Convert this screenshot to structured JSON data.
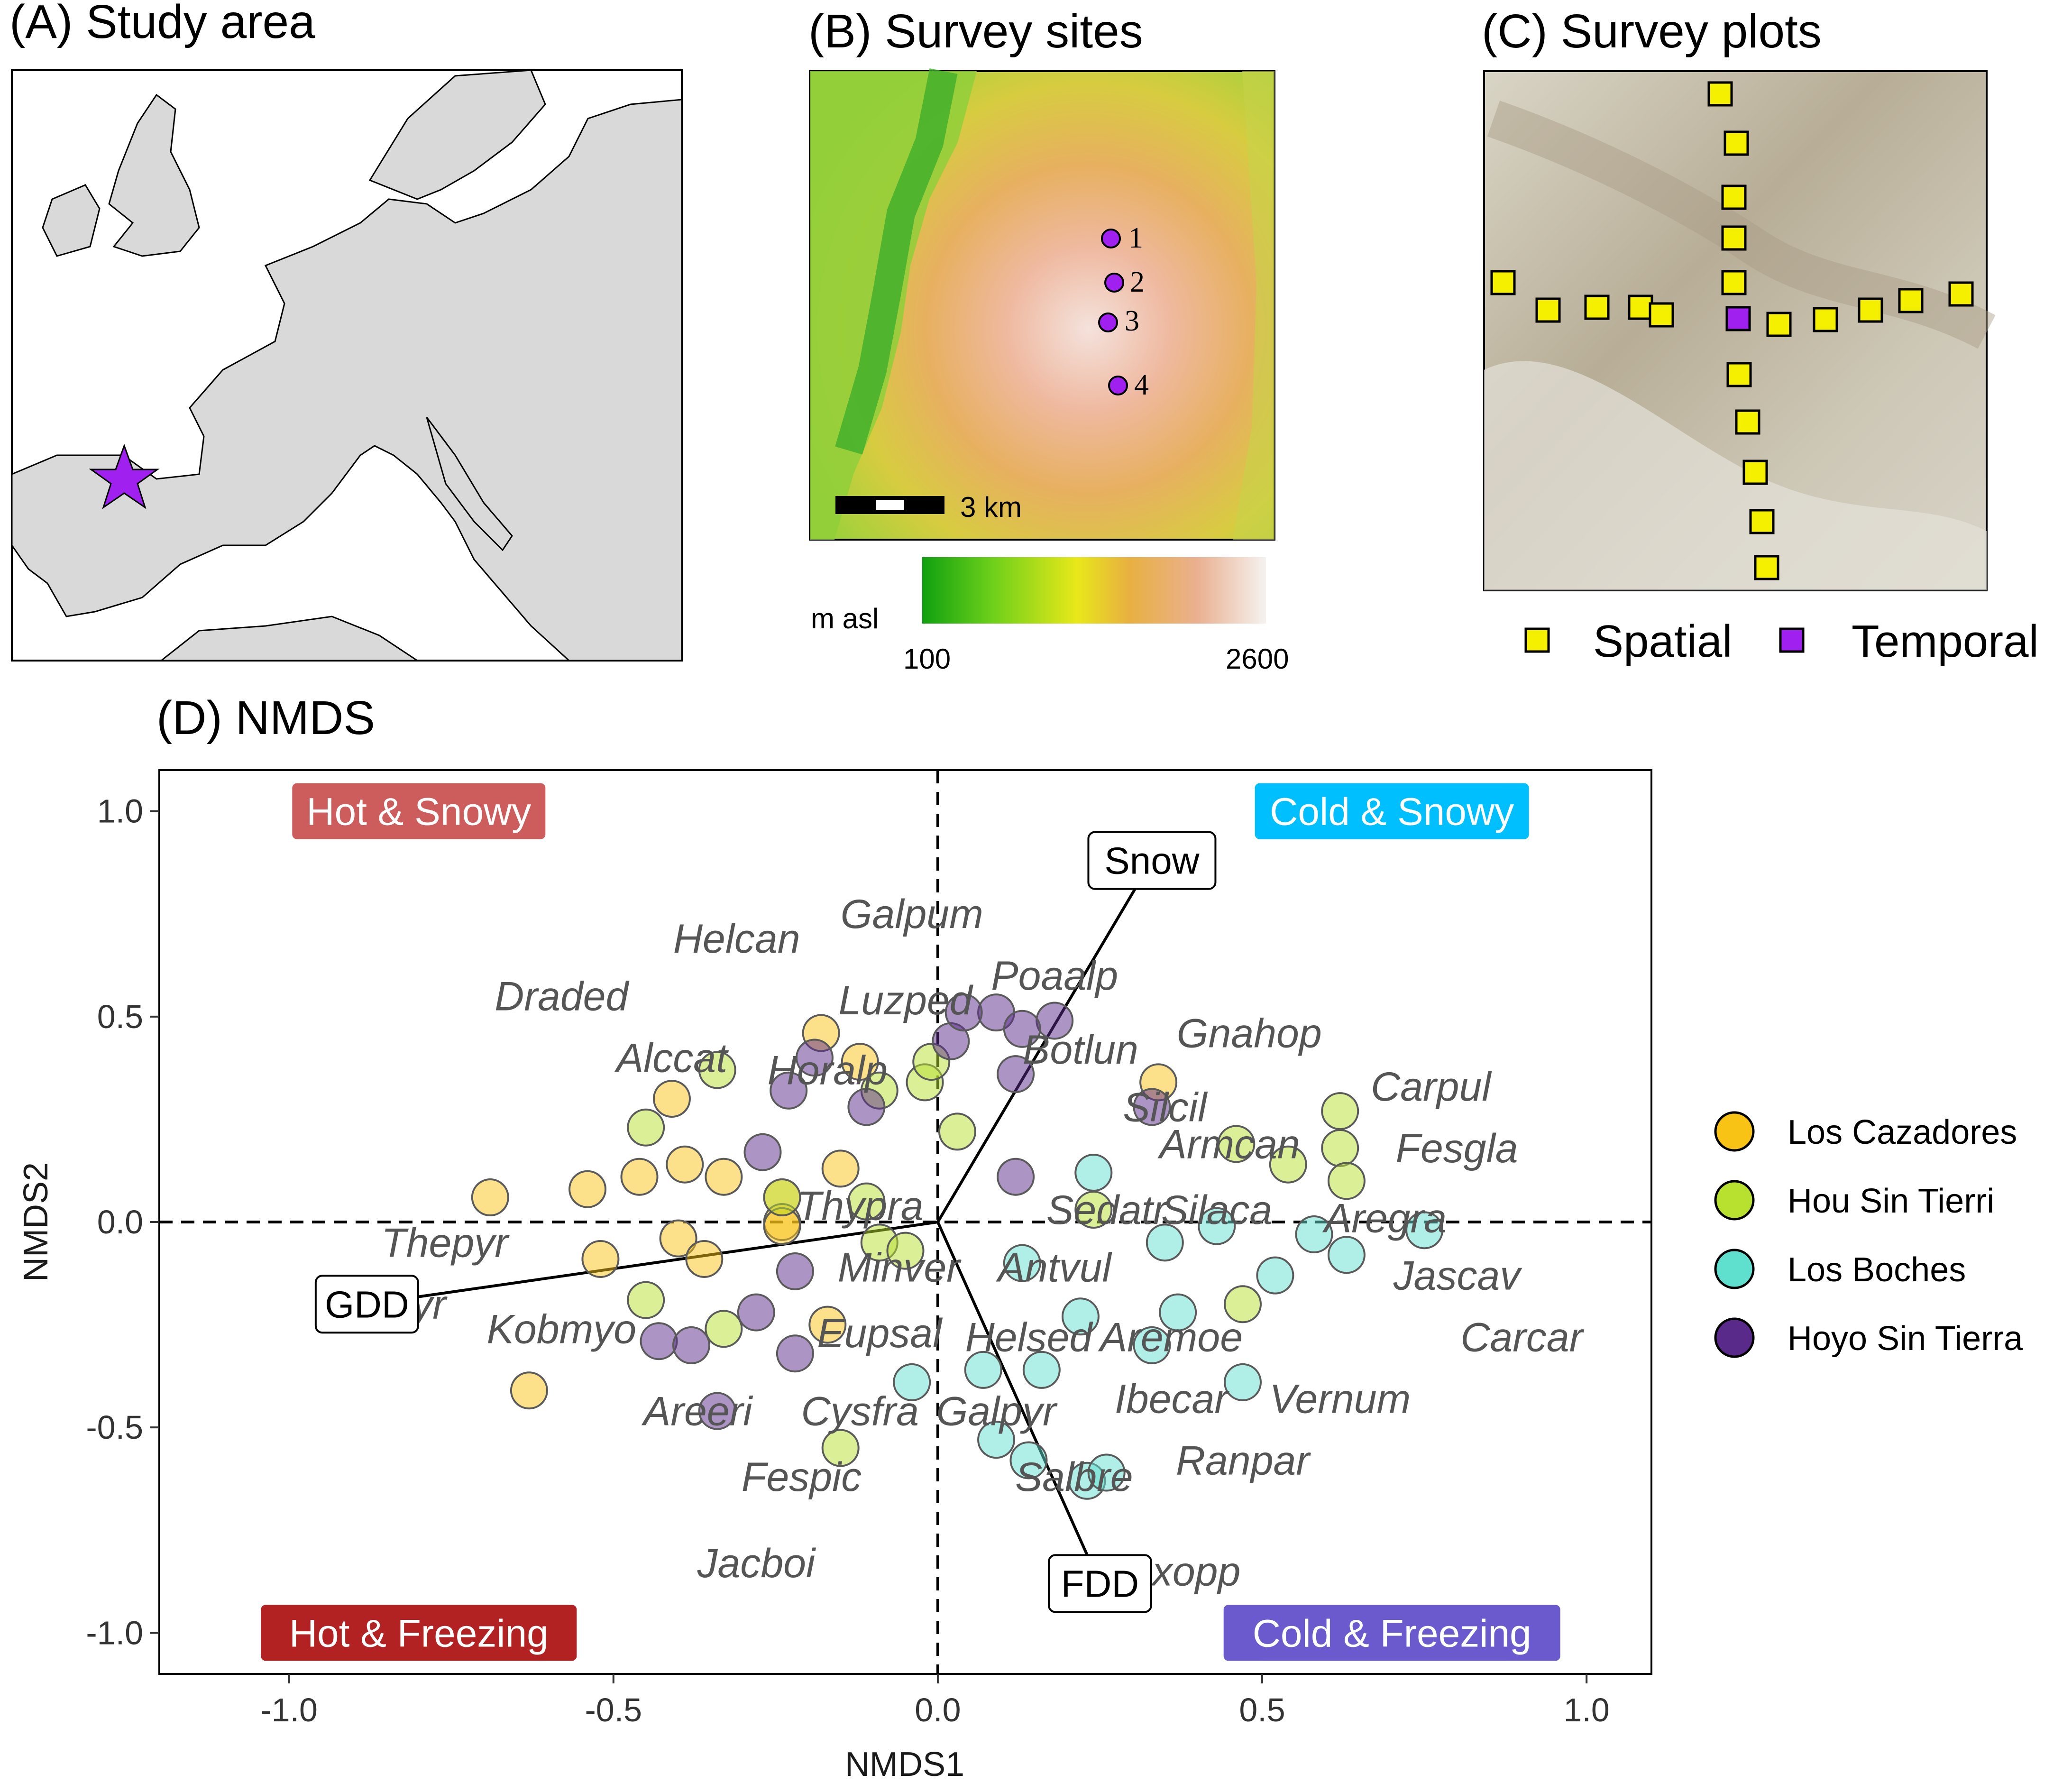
{
  "panels": {
    "a_title": "(A) Study area",
    "b_title": "(B) Survey sites",
    "c_title": "(C) Survey plots",
    "d_title": "(D) NMDS"
  },
  "survey_sites": {
    "labels": [
      "1",
      "2",
      "3",
      "4"
    ],
    "scale_label": "3 km",
    "elev_label": "m asl",
    "elev_min": "100",
    "elev_max": "2600"
  },
  "plots_legend": {
    "spatial": "Spatial",
    "temporal": "Temporal",
    "spatial_color": "#f5f000",
    "temporal_color": "#a020f0"
  },
  "colors": {
    "los_cazadores": "#f9c316",
    "hou_sin_tierri": "#b8e02e",
    "los_boches": "#5fe0cf",
    "hoyo_sin_tierra": "#5a2a8a",
    "hot_snowy": "#cd5c5c",
    "cold_snowy": "#00bfff",
    "hot_freezing": "#b22222",
    "cold_freezing": "#6a5acd"
  },
  "chart_data": {
    "type": "scatter",
    "xlabel": "NMDS1",
    "ylabel": "NMDS2",
    "xlim": [
      -1.2,
      1.1
    ],
    "ylim": [
      -1.1,
      1.1
    ],
    "xticks": [
      "-1.0",
      "-0.5",
      "0.0",
      "0.5",
      "1.0"
    ],
    "yticks": [
      "1.0",
      "0.5",
      "0.0",
      "-0.5",
      "-1.0"
    ],
    "quadrants": {
      "top_left": "Hot & Snowy",
      "top_right": "Cold & Snowy",
      "bottom_left": "Hot & Freezing",
      "bottom_right": "Cold & Freezing"
    },
    "vectors": [
      {
        "label": "Snow",
        "x": 0.33,
        "y": 0.88
      },
      {
        "label": "GDD",
        "x": -0.88,
        "y": -0.2
      },
      {
        "label": "FDD",
        "x": 0.25,
        "y": -0.88
      }
    ],
    "legend": [
      "Los Cazadores",
      "Hou Sin Tierri",
      "Los Boches",
      "Hoyo Sin Tierra"
    ],
    "series": [
      {
        "name": "Los Cazadores",
        "points": [
          [
            -0.69,
            0.06
          ],
          [
            -0.54,
            0.08
          ],
          [
            -0.46,
            0.11
          ],
          [
            -0.39,
            0.14
          ],
          [
            -0.33,
            0.11
          ],
          [
            -0.41,
            0.3
          ],
          [
            -0.18,
            0.46
          ],
          [
            -0.12,
            0.39
          ],
          [
            -0.15,
            0.13
          ],
          [
            -0.24,
            0.06
          ],
          [
            -0.24,
            0.0
          ],
          [
            -0.24,
            -0.01
          ],
          [
            -0.4,
            -0.04
          ],
          [
            -0.36,
            -0.09
          ],
          [
            -0.52,
            -0.09
          ],
          [
            -0.17,
            -0.25
          ],
          [
            -0.63,
            -0.41
          ],
          [
            0.34,
            0.34
          ]
        ]
      },
      {
        "name": "Hou Sin Tierri",
        "points": [
          [
            -0.34,
            0.37
          ],
          [
            -0.45,
            0.23
          ],
          [
            -0.09,
            0.32
          ],
          [
            -0.02,
            0.34
          ],
          [
            -0.01,
            0.39
          ],
          [
            0.03,
            0.22
          ],
          [
            -0.24,
            0.06
          ],
          [
            -0.11,
            0.05
          ],
          [
            -0.09,
            -0.05
          ],
          [
            -0.05,
            -0.07
          ],
          [
            -0.45,
            -0.19
          ],
          [
            -0.33,
            -0.26
          ],
          [
            -0.15,
            -0.55
          ],
          [
            0.24,
            0.03
          ],
          [
            0.46,
            0.19
          ],
          [
            0.54,
            0.14
          ],
          [
            0.62,
            0.27
          ],
          [
            0.62,
            0.18
          ],
          [
            0.63,
            0.1
          ],
          [
            0.47,
            -0.2
          ]
        ]
      },
      {
        "name": "Los Boches",
        "points": [
          [
            0.24,
            0.12
          ],
          [
            0.35,
            -0.05
          ],
          [
            0.43,
            -0.01
          ],
          [
            0.58,
            -0.03
          ],
          [
            0.63,
            -0.08
          ],
          [
            0.75,
            -0.02
          ],
          [
            0.52,
            -0.13
          ],
          [
            0.13,
            -0.1
          ],
          [
            0.22,
            -0.23
          ],
          [
            0.37,
            -0.22
          ],
          [
            0.33,
            -0.3
          ],
          [
            0.07,
            -0.36
          ],
          [
            0.16,
            -0.36
          ],
          [
            0.47,
            -0.39
          ],
          [
            -0.04,
            -0.39
          ],
          [
            0.09,
            -0.53
          ],
          [
            0.14,
            -0.58
          ],
          [
            0.23,
            -0.63
          ],
          [
            0.26,
            -0.61
          ]
        ]
      },
      {
        "name": "Hoyo Sin Tierra",
        "points": [
          [
            0.09,
            0.51
          ],
          [
            0.18,
            0.49
          ],
          [
            0.13,
            0.47
          ],
          [
            0.02,
            0.44
          ],
          [
            0.04,
            0.51
          ],
          [
            -0.19,
            0.4
          ],
          [
            -0.23,
            0.32
          ],
          [
            -0.11,
            0.28
          ],
          [
            0.12,
            0.36
          ],
          [
            0.33,
            0.28
          ],
          [
            -0.27,
            0.17
          ],
          [
            0.12,
            0.11
          ],
          [
            -0.22,
            -0.12
          ],
          [
            -0.28,
            -0.22
          ],
          [
            -0.43,
            -0.29
          ],
          [
            -0.38,
            -0.3
          ],
          [
            -0.22,
            -0.32
          ],
          [
            -0.34,
            -0.46
          ]
        ]
      }
    ],
    "species": [
      {
        "label": "Galpum",
        "x": -0.04,
        "y": 0.75
      },
      {
        "label": "Helcan",
        "x": -0.31,
        "y": 0.69
      },
      {
        "label": "Poaalp",
        "x": 0.18,
        "y": 0.6
      },
      {
        "label": "Draded",
        "x": -0.58,
        "y": 0.55
      },
      {
        "label": "Luzped",
        "x": -0.05,
        "y": 0.54
      },
      {
        "label": "Gnahop",
        "x": 0.48,
        "y": 0.46
      },
      {
        "label": "Botlun",
        "x": 0.22,
        "y": 0.42
      },
      {
        "label": "Alccat",
        "x": -0.41,
        "y": 0.4
      },
      {
        "label": "Horalp",
        "x": -0.17,
        "y": 0.37
      },
      {
        "label": "Carpul",
        "x": 0.76,
        "y": 0.33
      },
      {
        "label": "Silcil",
        "x": 0.35,
        "y": 0.28
      },
      {
        "label": "Armcan",
        "x": 0.45,
        "y": 0.19
      },
      {
        "label": "Fesgla",
        "x": 0.8,
        "y": 0.18
      },
      {
        "label": "Thypra",
        "x": -0.12,
        "y": 0.04
      },
      {
        "label": "Sedatr",
        "x": 0.26,
        "y": 0.03
      },
      {
        "label": "Silaca",
        "x": 0.43,
        "y": 0.03
      },
      {
        "label": "Aregra",
        "x": 0.69,
        "y": 0.01
      },
      {
        "label": "Thepyr",
        "x": -0.76,
        "y": -0.05
      },
      {
        "label": "Minver",
        "x": -0.06,
        "y": -0.11
      },
      {
        "label": "Antvul",
        "x": 0.18,
        "y": -0.11
      },
      {
        "label": "Jascav",
        "x": 0.8,
        "y": -0.13
      },
      {
        "label": "Eupyr",
        "x": -0.84,
        "y": -0.2
      },
      {
        "label": "Kobmyo",
        "x": -0.58,
        "y": -0.26
      },
      {
        "label": "Eupsal",
        "x": -0.09,
        "y": -0.27
      },
      {
        "label": "Helsed",
        "x": 0.14,
        "y": -0.28
      },
      {
        "label": "Aremoe",
        "x": 0.36,
        "y": -0.28
      },
      {
        "label": "Carcar",
        "x": 0.9,
        "y": -0.28
      },
      {
        "label": "Ibecar",
        "x": 0.36,
        "y": -0.43
      },
      {
        "label": "Vernum",
        "x": 0.62,
        "y": -0.43
      },
      {
        "label": "Areeri",
        "x": -0.37,
        "y": -0.46
      },
      {
        "label": "Cysfra",
        "x": -0.12,
        "y": -0.46
      },
      {
        "label": "Galpyr",
        "x": 0.09,
        "y": -0.46
      },
      {
        "label": "Ranpar",
        "x": 0.47,
        "y": -0.58
      },
      {
        "label": "Fespic",
        "x": -0.21,
        "y": -0.62
      },
      {
        "label": "Salbre",
        "x": 0.21,
        "y": -0.62
      },
      {
        "label": "Jacboi",
        "x": -0.28,
        "y": -0.83
      },
      {
        "label": "Saxopp",
        "x": 0.36,
        "y": -0.85
      }
    ]
  }
}
